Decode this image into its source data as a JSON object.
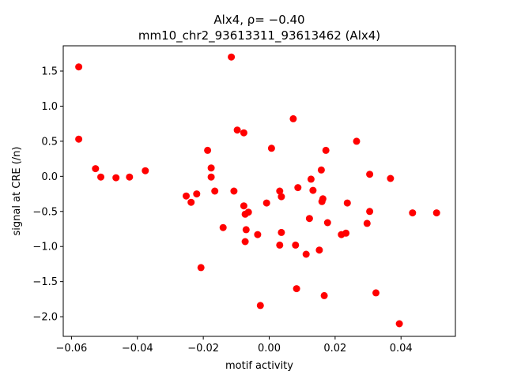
{
  "chart_data": {
    "type": "scatter",
    "title_line1": "Alx4, ρ= −0.40",
    "title_line2": "mm10_chr2_93613311_93613462 (Alx4)",
    "xlabel": "motif activity",
    "ylabel": "signal at CRE (/n)",
    "xlim": [
      -0.0625,
      0.0565
    ],
    "ylim": [
      -2.28,
      1.86
    ],
    "xticks": [
      -0.06,
      -0.04,
      -0.02,
      0.0,
      0.02,
      0.04
    ],
    "xtick_labels": [
      "−0.06",
      "−0.04",
      "−0.02",
      "0.00",
      "0.02",
      "0.04"
    ],
    "yticks": [
      1.5,
      1.0,
      0.5,
      0.0,
      -0.5,
      -1.0,
      -1.5,
      -2.0
    ],
    "ytick_labels": [
      "1.5",
      "1.0",
      "0.5",
      "0.0",
      "−0.5",
      "−1.0",
      "−1.5",
      "−2.0"
    ],
    "marker_color": "#ff0000",
    "grid": false,
    "points": [
      {
        "x": -0.0578,
        "y": 1.56
      },
      {
        "x": -0.0578,
        "y": 0.53
      },
      {
        "x": -0.0527,
        "y": 0.11
      },
      {
        "x": -0.0511,
        "y": -0.01
      },
      {
        "x": -0.0465,
        "y": -0.02
      },
      {
        "x": -0.0424,
        "y": -0.01
      },
      {
        "x": -0.0376,
        "y": 0.08
      },
      {
        "x": -0.0252,
        "y": -0.28
      },
      {
        "x": -0.0237,
        "y": -0.37
      },
      {
        "x": -0.022,
        "y": -0.25
      },
      {
        "x": -0.0207,
        "y": -1.3
      },
      {
        "x": -0.0187,
        "y": 0.37
      },
      {
        "x": -0.0176,
        "y": 0.12
      },
      {
        "x": -0.0176,
        "y": -0.01
      },
      {
        "x": -0.0165,
        "y": -0.21
      },
      {
        "x": -0.014,
        "y": -0.73
      },
      {
        "x": -0.0115,
        "y": 1.7
      },
      {
        "x": -0.0107,
        "y": -0.21
      },
      {
        "x": -0.0097,
        "y": 0.66
      },
      {
        "x": -0.0077,
        "y": 0.62
      },
      {
        "x": -0.0077,
        "y": -0.42
      },
      {
        "x": -0.0073,
        "y": -0.54
      },
      {
        "x": -0.007,
        "y": -0.76
      },
      {
        "x": -0.0073,
        "y": -0.93
      },
      {
        "x": -0.0063,
        "y": -0.51
      },
      {
        "x": -0.0035,
        "y": -0.83
      },
      {
        "x": -0.0027,
        "y": -1.84
      },
      {
        "x": -0.0008,
        "y": -0.38
      },
      {
        "x": 0.0007,
        "y": 0.4
      },
      {
        "x": 0.0032,
        "y": -0.21
      },
      {
        "x": 0.0037,
        "y": -0.29
      },
      {
        "x": 0.0037,
        "y": -0.8
      },
      {
        "x": 0.0032,
        "y": -0.98
      },
      {
        "x": 0.0073,
        "y": 0.82
      },
      {
        "x": 0.0087,
        "y": -0.16
      },
      {
        "x": 0.008,
        "y": -0.98
      },
      {
        "x": 0.0083,
        "y": -1.6
      },
      {
        "x": 0.0112,
        "y": -1.11
      },
      {
        "x": 0.0122,
        "y": -0.6
      },
      {
        "x": 0.0127,
        "y": -0.04
      },
      {
        "x": 0.0133,
        "y": -0.2
      },
      {
        "x": 0.0152,
        "y": -1.05
      },
      {
        "x": 0.0158,
        "y": 0.09
      },
      {
        "x": 0.016,
        "y": -0.36
      },
      {
        "x": 0.0163,
        "y": -0.32
      },
      {
        "x": 0.0172,
        "y": 0.37
      },
      {
        "x": 0.0177,
        "y": -0.66
      },
      {
        "x": 0.0167,
        "y": -1.7
      },
      {
        "x": 0.0219,
        "y": -0.83
      },
      {
        "x": 0.0233,
        "y": -0.81
      },
      {
        "x": 0.0237,
        "y": -0.38
      },
      {
        "x": 0.0265,
        "y": 0.5
      },
      {
        "x": 0.0297,
        "y": -0.67
      },
      {
        "x": 0.0305,
        "y": 0.03
      },
      {
        "x": 0.0305,
        "y": -0.5
      },
      {
        "x": 0.0324,
        "y": -1.66
      },
      {
        "x": 0.0368,
        "y": -0.03
      },
      {
        "x": 0.0395,
        "y": -2.1
      },
      {
        "x": 0.0435,
        "y": -0.52
      },
      {
        "x": 0.0508,
        "y": -0.52
      }
    ]
  }
}
